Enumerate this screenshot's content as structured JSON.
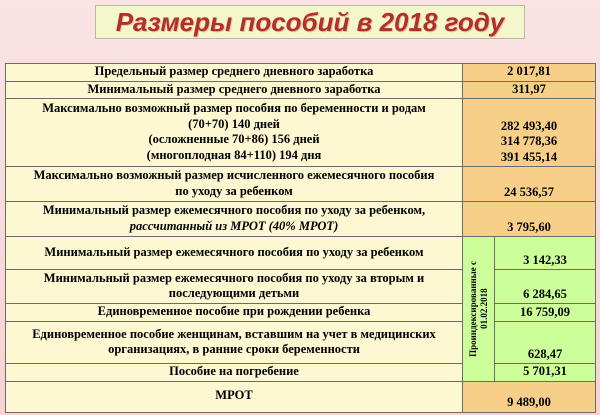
{
  "header": {
    "title": "Размеры пособий в 2018 году"
  },
  "table": {
    "indexed_note": [
      "Проиндексированные с",
      "01.02.2018"
    ],
    "rows": [
      {
        "label": [
          "Предельный размер  среднего дневного заработка"
        ],
        "value": [
          "2 017,81"
        ]
      },
      {
        "label": [
          "Минимальный размер среднего дневного заработка"
        ],
        "value": [
          "311,97"
        ]
      },
      {
        "label": [
          "Максимально возможный размер пособия по беременности и родам",
          "(70+70)  140 дней",
          "(осложненные 70+86) 156 дней",
          "(многоплодная 84+110) 194 дня"
        ],
        "value": [
          "282 493,40",
          "314 778,36",
          "391 455,14"
        ]
      },
      {
        "label": [
          "Максимально возможный размер исчисленного ежемесячного пособия",
          "по уходу за ребенком"
        ],
        "value": [
          "24 536,57"
        ]
      },
      {
        "label": [
          "Минимальный размер ежемесячного пособия по уходу за ребенком,",
          "рассчитанный из МРОТ (40% МРОТ)"
        ],
        "value": [
          "3 795,60"
        ]
      },
      {
        "label": [
          "Минимальный размер ежемесячного пособия по уходу за ребенком"
        ],
        "value": [
          "3 142,33"
        ]
      },
      {
        "label": [
          "Минимальный размер ежемесячного пособия по уходу за вторым и",
          "последующими детьми"
        ],
        "value": [
          "6 284,65"
        ]
      },
      {
        "label": [
          "Единовременное пособие при рождении ребенка"
        ],
        "value": [
          "16 759,09"
        ]
      },
      {
        "label": [
          "Единовременное пособие женщинам, вставшим на учет в медицинских",
          "организациях, в ранние сроки беременности"
        ],
        "value": [
          "628,47"
        ]
      },
      {
        "label": [
          "Пособие на погребение"
        ],
        "value": [
          "5 701,31"
        ]
      },
      {
        "label": [
          "МРОТ"
        ],
        "value": [
          "9 489,00"
        ]
      }
    ]
  }
}
